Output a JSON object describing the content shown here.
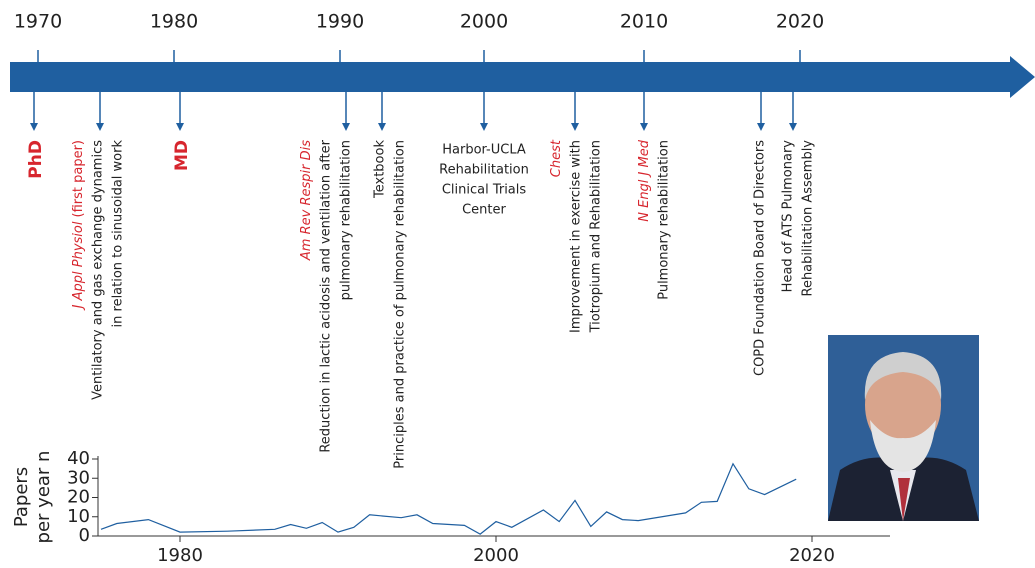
{
  "timeline": {
    "years": [
      1970,
      1980,
      1990,
      2000,
      2010,
      2020
    ],
    "events": [
      {
        "label": "PhD"
      },
      {
        "journal": "J Appl Physiol",
        "note": "(first paper)",
        "lines": [
          "Ventilatory and gas exchange dynamics",
          "in relation to sinusoidal work"
        ]
      },
      {
        "label": "MD"
      },
      {
        "journal": "Am Rev Respir Dis",
        "lines": [
          "Reduction in lactic acidosis and ventilation after",
          "pulmonary rehabilitation"
        ]
      },
      {
        "lines": [
          "Textbook",
          "Principles and practice of pulmonary rehabilitation"
        ]
      },
      {
        "lines": [
          "Harbor-UCLA",
          "Rehabilitation",
          "Clinical Trials",
          "Center"
        ]
      },
      {
        "journal": "Chest",
        "lines": [
          "Improvement in exercise with",
          "Tiotropium and Rehabilitation"
        ]
      },
      {
        "journal": "N Engl J Med",
        "lines": [
          "Pulmonary rehabilitation"
        ]
      },
      {
        "lines": [
          "COPD Foundation Board of Directors"
        ]
      },
      {
        "lines": [
          "Head of ATS Pulmonary",
          "Rehabilitation Assembly"
        ]
      }
    ]
  },
  "chart_data": {
    "type": "line",
    "ylabel": [
      "Papers",
      "per year n"
    ],
    "x": [
      1975,
      1976,
      1978,
      1980,
      1983,
      1986,
      1987,
      1988,
      1989,
      1990,
      1991,
      1992,
      1994,
      1995,
      1996,
      1998,
      1999,
      2000,
      2001,
      2003,
      2004,
      2005,
      2006,
      2007,
      2008,
      2009,
      2012,
      2013,
      2014,
      2015,
      2016,
      2017,
      2019
    ],
    "values": [
      3.5,
      6.5,
      8.5,
      2,
      2.5,
      3.5,
      6,
      4,
      7,
      2,
      4.5,
      11,
      9.5,
      11,
      6.5,
      5.5,
      1,
      7.5,
      4.5,
      13.5,
      7.5,
      18.5,
      5,
      12.5,
      8.5,
      8,
      12,
      17.5,
      18,
      37.5,
      24.5,
      21.5,
      29.5
    ],
    "color": "#1f5fa0",
    "xlim": [
      1975,
      2025
    ],
    "xticks": [
      1980,
      2000,
      2020
    ],
    "ylim": [
      0,
      40
    ],
    "yticks": [
      0,
      10,
      20,
      30,
      40
    ]
  }
}
